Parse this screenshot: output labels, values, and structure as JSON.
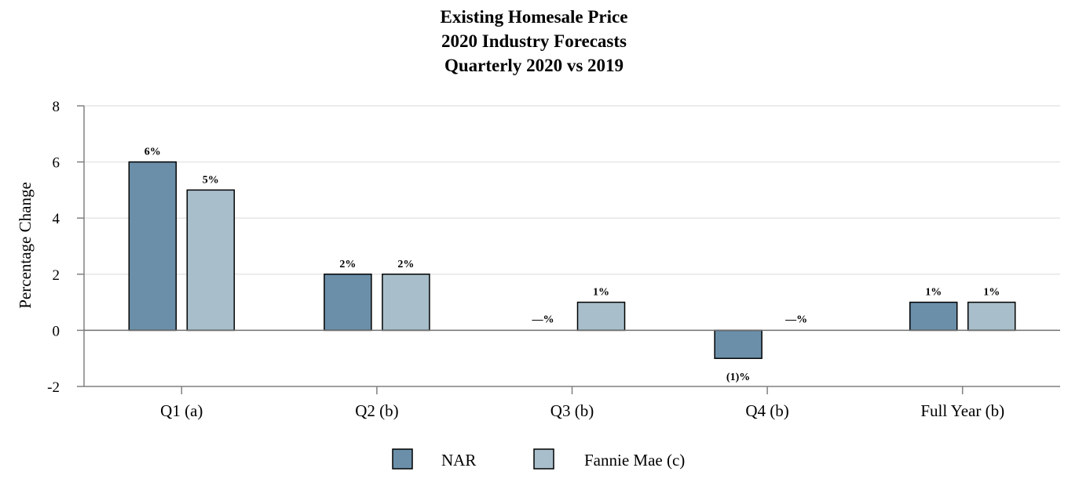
{
  "chart_data": {
    "type": "bar",
    "title": [
      "Existing Homesale Price",
      "2020 Industry Forecasts",
      "Quarterly 2020 vs 2019"
    ],
    "xlabel": "",
    "ylabel": "Percentage Change",
    "categories": [
      "Q1 (a)",
      "Q2 (b)",
      "Q3 (b)",
      "Q4 (b)",
      "Full Year (b)"
    ],
    "ylim": [
      -2,
      8
    ],
    "yticks": [
      -2,
      0,
      2,
      4,
      6,
      8
    ],
    "grid": true,
    "legend_position": "bottom-center",
    "series": [
      {
        "name": "NAR",
        "color": "#6b8fa9",
        "values": [
          6,
          2,
          0,
          -1,
          1
        ],
        "labels": [
          "6%",
          "2%",
          "—%",
          "(1)%",
          "1%"
        ]
      },
      {
        "name": "Fannie Mae (c)",
        "color": "#a8bfcb",
        "values": [
          5,
          2,
          1,
          0,
          1
        ],
        "labels": [
          "5%",
          "2%",
          "1%",
          "—%",
          "1%"
        ]
      }
    ]
  }
}
